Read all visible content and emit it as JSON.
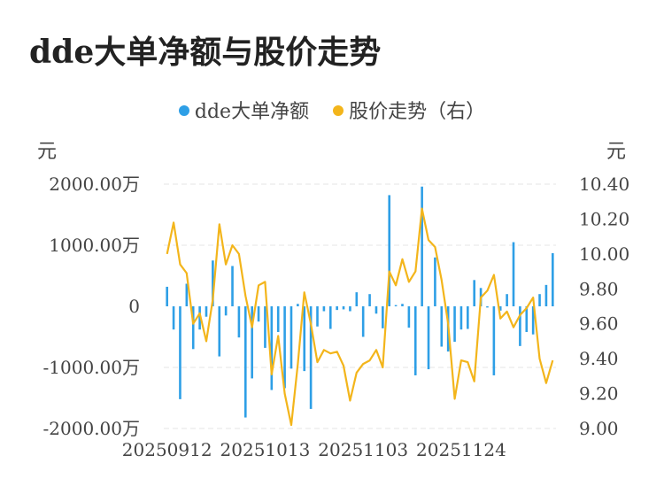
{
  "title": "dde大单净额与股价走势",
  "chart_data": {
    "type": "bar+line",
    "legend": [
      {
        "name": "dde大单净额",
        "color": "#2e9fe6"
      },
      {
        "name": "股价走势（右）",
        "color": "#f3b51b"
      }
    ],
    "legend_position": "top-center",
    "y_left": {
      "unit": "元",
      "ylim": [
        -2000,
        2000
      ],
      "ticks": [
        2000,
        1000,
        0,
        -1000,
        -2000
      ],
      "tick_labels": [
        "2000.00万",
        "1000.00万",
        "0",
        "-1000.00万",
        "-2000.00万"
      ]
    },
    "y_right": {
      "unit": "元",
      "ylim": [
        9.0,
        10.4
      ],
      "ticks": [
        10.4,
        10.2,
        10.0,
        9.8,
        9.6,
        9.4,
        9.2,
        9.0
      ],
      "tick_labels": [
        "10.40",
        "10.20",
        "10.00",
        "9.80",
        "9.60",
        "9.40",
        "9.20",
        "9.00"
      ]
    },
    "x_tick_labels": [
      {
        "index": 0,
        "label": "20250912"
      },
      {
        "index": 15,
        "label": "20251013"
      },
      {
        "index": 30,
        "label": "20251103"
      },
      {
        "index": 45,
        "label": "20251124"
      }
    ],
    "grid": "horizontal-dashed",
    "series": [
      {
        "name": "dde大单净额",
        "kind": "bar",
        "color": "#2e9fe6",
        "values": [
          320,
          -380,
          -1520,
          370,
          -700,
          -380,
          -170,
          750,
          -820,
          -150,
          660,
          -510,
          -1820,
          -1180,
          -250,
          -680,
          -1370,
          -420,
          -1340,
          -1020,
          40,
          -1060,
          -1680,
          -330,
          -80,
          -370,
          -60,
          -50,
          -80,
          230,
          -500,
          200,
          -120,
          -360,
          1820,
          20,
          40,
          -350,
          -1130,
          1960,
          -1030,
          800,
          -660,
          -740,
          -580,
          -380,
          -370,
          430,
          300,
          -20,
          -1130,
          -70,
          200,
          1050,
          -650,
          -420,
          -460,
          200,
          350,
          870
        ],
        "unit": "万"
      },
      {
        "name": "股价走势（右）",
        "kind": "line",
        "color": "#f3b51b",
        "axis": "right",
        "values": [
          10.0,
          10.18,
          9.94,
          9.89,
          9.6,
          9.66,
          9.5,
          9.74,
          10.17,
          9.94,
          10.05,
          10.0,
          9.76,
          9.58,
          9.82,
          9.84,
          9.31,
          9.53,
          9.2,
          9.02,
          9.37,
          9.78,
          9.6,
          9.38,
          9.45,
          9.43,
          9.44,
          9.36,
          9.16,
          9.32,
          9.37,
          9.39,
          9.45,
          9.35,
          9.9,
          9.82,
          9.97,
          9.84,
          9.9,
          10.26,
          10.08,
          10.04,
          9.85,
          9.6,
          9.17,
          9.39,
          9.38,
          9.27,
          9.75,
          9.79,
          9.88,
          9.63,
          9.67,
          9.58,
          9.65,
          9.69,
          9.75,
          9.4,
          9.26,
          9.39
        ]
      }
    ]
  }
}
